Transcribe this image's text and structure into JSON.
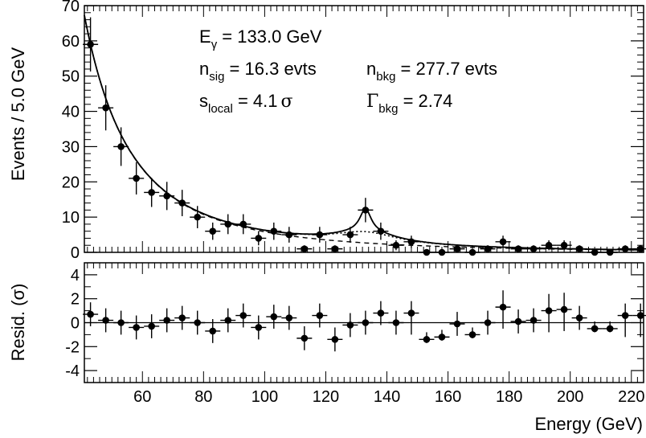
{
  "chart_data": [
    {
      "type": "scatter",
      "panel": "main",
      "ylabel": "Events / 5.0 GeV",
      "xlim": [
        41,
        224
      ],
      "ylim": [
        0,
        70
      ],
      "y_ticks": [
        0,
        10,
        20,
        30,
        40,
        50,
        60,
        70
      ],
      "bin_width": 5,
      "x": [
        43,
        48,
        53,
        58,
        63,
        68,
        73,
        78,
        83,
        88,
        93,
        98,
        103,
        108,
        113,
        118,
        123,
        128,
        133,
        138,
        143,
        148,
        153,
        158,
        163,
        168,
        173,
        178,
        183,
        188,
        193,
        198,
        203,
        208,
        213,
        218,
        223
      ],
      "series": [
        {
          "style": "points with vertical error bars",
          "values": [
            59,
            41,
            30,
            21,
            17,
            16,
            14,
            10,
            6,
            8,
            8,
            4,
            6,
            5,
            1,
            5,
            1,
            5,
            12,
            6,
            2,
            3,
            0,
            0,
            1,
            0,
            1,
            3,
            1,
            1,
            2,
            2,
            1,
            0,
            0,
            1,
            1
          ]
        },
        {
          "style": "solid curve (total fit)"
        },
        {
          "style": "dotted curve"
        },
        {
          "style": "dashed curve"
        }
      ],
      "annotations": {
        "line1": {
          "prefix": "E",
          "sub": "γ",
          "rest": " = 133.0 GeV"
        },
        "line2a": {
          "prefix": "n",
          "sub": "sig",
          "rest": " = 16.3 evts"
        },
        "line2b": {
          "prefix": "n",
          "sub": "bkg",
          "rest": " = 277.7 evts"
        },
        "line3a": {
          "prefix": "s",
          "sub": "local",
          "rest": " = 4.1",
          "symbol": "σ"
        },
        "line3b": {
          "prefix": "Γ",
          "sub": "bkg",
          "rest": " = 2.74"
        }
      }
    },
    {
      "type": "scatter",
      "panel": "residual",
      "ylabel": "Resid. (σ)",
      "xlabel": "Energy (GeV)",
      "xlim": [
        41,
        224
      ],
      "ylim": [
        -5,
        5
      ],
      "y_ticks": [
        -4,
        -2,
        0,
        2,
        4
      ],
      "x_ticks": [
        60,
        80,
        100,
        120,
        140,
        160,
        180,
        200,
        220
      ],
      "x": [
        43,
        48,
        53,
        58,
        63,
        68,
        73,
        78,
        83,
        88,
        93,
        98,
        103,
        108,
        113,
        118,
        123,
        128,
        133,
        138,
        143,
        148,
        153,
        158,
        163,
        168,
        173,
        178,
        183,
        188,
        193,
        198,
        203,
        208,
        213,
        218,
        223
      ],
      "series": [
        {
          "style": "points with vertical error bars",
          "values": [
            0.7,
            0.2,
            0.0,
            -0.4,
            -0.3,
            0.2,
            0.4,
            0.0,
            -0.7,
            0.2,
            0.6,
            -0.4,
            0.5,
            0.4,
            -1.3,
            0.6,
            -1.4,
            -0.2,
            0.0,
            0.8,
            0.0,
            0.8,
            -1.4,
            -1.2,
            -0.1,
            -1.0,
            0.0,
            1.3,
            0.1,
            0.2,
            1.0,
            1.1,
            0.4,
            -0.5,
            -0.5,
            0.6,
            0.6
          ]
        }
      ]
    }
  ]
}
